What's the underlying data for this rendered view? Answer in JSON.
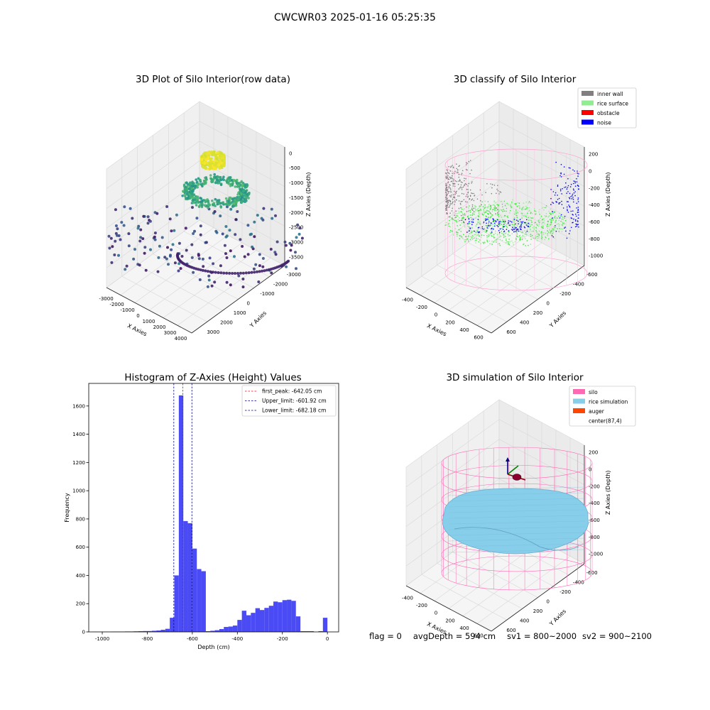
{
  "suptitle": "CWCWR03 2025-01-16 05:25:35",
  "colors": {
    "hist_bar": "#4b4bf5",
    "peak_line": "#ff0000",
    "limit_line": "#00008b",
    "inner_wall": "#808080",
    "rice_surface": "#90ee90",
    "obstacle": "#ff0000",
    "noise": "#0000ff",
    "silo": "#ff69b4",
    "rice_simulation": "#87ceeb",
    "auger": "#ff4500",
    "pane": "#f2f2f2",
    "grid": "#d8d8d8"
  },
  "status": {
    "flag": "flag = 0",
    "avg_depth": "avgDepth = 594 cm",
    "sv1": "sv1 = 800~2000",
    "sv2": "sv2 = 900~2100"
  },
  "chart_data": [
    {
      "type": "scatter",
      "title": "3D Plot of Silo Interior(row data)",
      "xlabel": "X Axies",
      "ylabel": "Y Axies",
      "zlabel": "Z Axies (Depth)",
      "xticks": [
        "-3000",
        "-2000",
        "-1000",
        "0",
        "1000",
        "2000",
        "3000",
        "4000"
      ],
      "yticks": [
        "-3000",
        "-2000",
        "-1000",
        "0",
        "1000",
        "2000",
        "3000"
      ],
      "zticks": [
        "0",
        "-500",
        "-1000",
        "-1500",
        "-2000",
        "-2500",
        "-3000",
        "-3500"
      ],
      "xlim": [
        -3500,
        4000
      ],
      "ylim": [
        -3500,
        3500
      ],
      "zlim": [
        -3800,
        0
      ],
      "colormap": "viridis"
    },
    {
      "type": "scatter",
      "title": "3D classify of Silo Interior",
      "xlabel": "X Axies",
      "ylabel": "Y Axies",
      "zlabel": "Z Axies (Depth)",
      "xticks": [
        "-400",
        "-200",
        "0",
        "200",
        "400",
        "600"
      ],
      "yticks": [
        "-600",
        "-400",
        "-200",
        "0",
        "200",
        "400",
        "600"
      ],
      "zticks": [
        "200",
        "0",
        "-200",
        "-400",
        "-600",
        "-800",
        "-1000"
      ],
      "xlim": [
        -500,
        750
      ],
      "ylim": [
        -650,
        650
      ],
      "zlim": [
        -1050,
        250
      ],
      "legend": [
        "inner wall",
        "rice surface",
        "obstacle",
        "noise"
      ],
      "legend_loc": "upper right"
    },
    {
      "type": "bar",
      "title": "Histogram of Z-Axies (Height) Values",
      "xlabel": "Depth (cm)",
      "ylabel": "Frequency",
      "xlim": [
        -1060,
        50
      ],
      "ylim": [
        0,
        1760
      ],
      "xticks": [
        -1000,
        -800,
        -600,
        -400,
        -200,
        0
      ],
      "yticks": [
        0,
        200,
        400,
        600,
        800,
        1000,
        1200,
        1400,
        1600
      ],
      "bin_edges": [
        -1040,
        -1020,
        -1000,
        -980,
        -960,
        -940,
        -920,
        -900,
        -880,
        -860,
        -840,
        -820,
        -800,
        -780,
        -760,
        -740,
        -720,
        -700,
        -680,
        -660,
        -640,
        -620,
        -600,
        -580,
        -560,
        -540,
        -520,
        -500,
        -480,
        -460,
        -440,
        -420,
        -400,
        -380,
        -360,
        -340,
        -320,
        -300,
        -280,
        -260,
        -240,
        -220,
        -200,
        -180,
        -160,
        -140,
        -120,
        -100,
        -80,
        -60,
        -40,
        -20,
        0,
        20
      ],
      "counts": [
        1,
        1,
        1,
        1,
        2,
        2,
        2,
        3,
        3,
        4,
        5,
        6,
        6,
        8,
        10,
        15,
        22,
        100,
        400,
        1675,
        785,
        770,
        590,
        445,
        430,
        5,
        8,
        12,
        20,
        35,
        38,
        45,
        85,
        150,
        118,
        135,
        168,
        155,
        170,
        185,
        215,
        210,
        225,
        228,
        220,
        110,
        5,
        5,
        5,
        0,
        5,
        100,
        0
      ],
      "vlines": [
        {
          "value": -642.05,
          "label": "first_peak: -642.05 cm",
          "style": "peak"
        },
        {
          "value": -601.92,
          "label": "Upper_limit: -601.92 cm",
          "style": "limit"
        },
        {
          "value": -682.18,
          "label": "Lower_limit: -682.18 cm",
          "style": "limit"
        }
      ],
      "legend_loc": "upper right"
    },
    {
      "type": "scatter",
      "title": "3D simulation of Silo Interior",
      "xlabel": "X Axies",
      "ylabel": "Y Axies",
      "zlabel": "Z Axies (Depth)",
      "xticks": [
        "-400",
        "-200",
        "0",
        "200",
        "400",
        "600"
      ],
      "yticks": [
        "-600",
        "-400",
        "-200",
        "0",
        "200",
        "400",
        "600"
      ],
      "zticks": [
        "200",
        "0",
        "-200",
        "-400",
        "-600",
        "-800",
        "-1000"
      ],
      "xlim": [
        -500,
        750
      ],
      "ylim": [
        -650,
        650
      ],
      "zlim": [
        -1050,
        250
      ],
      "legend": [
        "silo",
        "rice simulation",
        "auger",
        "center(87,4)"
      ],
      "legend_loc": "upper right"
    }
  ]
}
